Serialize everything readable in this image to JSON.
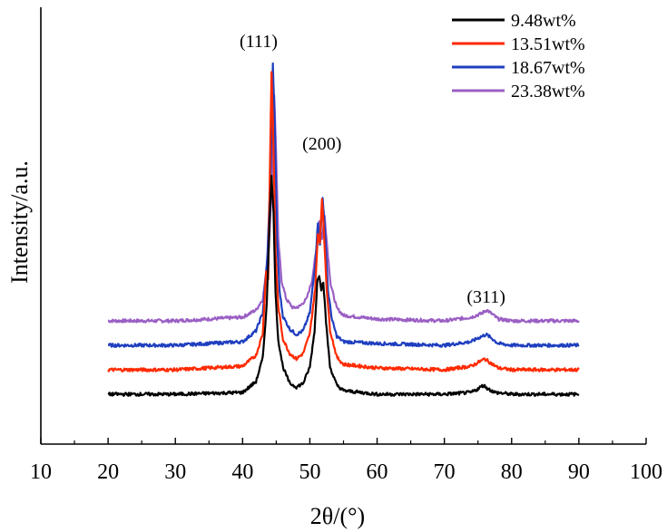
{
  "chart_data": {
    "type": "line",
    "title": "",
    "xlabel": "2θ/(°)",
    "ylabel": "Intensity/a.u.",
    "xlim": [
      10,
      100
    ],
    "x_ticks": [
      "10",
      "20",
      "30",
      "40",
      "50",
      "60",
      "70",
      "80",
      "90",
      "100"
    ],
    "y_ticks_shown": false,
    "grid": false,
    "legend_position": "top-right",
    "peak_labels": [
      {
        "text": "(111)",
        "x": 44.4
      },
      {
        "text": "(200)",
        "x": 51.8
      },
      {
        "text": "(311)",
        "x": 76.2
      }
    ],
    "series": [
      {
        "name": "9.48wt%",
        "color": "#000000",
        "baseline": 0.0,
        "points": [
          [
            20,
            0
          ],
          [
            30,
            0
          ],
          [
            40,
            0.01
          ],
          [
            42,
            0.07
          ],
          [
            43,
            0.2
          ],
          [
            43.6,
            0.5
          ],
          [
            44.1,
            1.05
          ],
          [
            44.3,
            1.2
          ],
          [
            44.6,
            1.0
          ],
          [
            44.9,
            0.55
          ],
          [
            45.3,
            0.3
          ],
          [
            46,
            0.15
          ],
          [
            47,
            0.06
          ],
          [
            48,
            0.04
          ],
          [
            49,
            0.06
          ],
          [
            50,
            0.15
          ],
          [
            50.7,
            0.35
          ],
          [
            51.1,
            0.62
          ],
          [
            51.4,
            0.66
          ],
          [
            51.7,
            0.58
          ],
          [
            52.0,
            0.62
          ],
          [
            52.4,
            0.4
          ],
          [
            53,
            0.15
          ],
          [
            54,
            0.05
          ],
          [
            55,
            0.02
          ],
          [
            60,
            0
          ],
          [
            70,
            0
          ],
          [
            74,
            0.01
          ],
          [
            75,
            0.03
          ],
          [
            75.8,
            0.05
          ],
          [
            76.5,
            0.03
          ],
          [
            77.5,
            0.01
          ],
          [
            80,
            0
          ],
          [
            90,
            0
          ]
        ]
      },
      {
        "name": "13.51wt%",
        "color": "#ff2a00",
        "baseline": 0.135,
        "points": [
          [
            20,
            0
          ],
          [
            30,
            0
          ],
          [
            40,
            0.02
          ],
          [
            42,
            0.08
          ],
          [
            43,
            0.2
          ],
          [
            43.5,
            0.55
          ],
          [
            43.8,
            0.5
          ],
          [
            44.1,
            1.2
          ],
          [
            44.3,
            1.65
          ],
          [
            44.6,
            1.2
          ],
          [
            44.9,
            0.65
          ],
          [
            45.3,
            0.35
          ],
          [
            46,
            0.17
          ],
          [
            47,
            0.09
          ],
          [
            48,
            0.06
          ],
          [
            49,
            0.09
          ],
          [
            50,
            0.2
          ],
          [
            50.8,
            0.45
          ],
          [
            51.2,
            0.75
          ],
          [
            51.5,
            0.7
          ],
          [
            51.8,
            0.95
          ],
          [
            52.1,
            0.75
          ],
          [
            52.5,
            0.45
          ],
          [
            53,
            0.22
          ],
          [
            54,
            0.07
          ],
          [
            55,
            0.03
          ],
          [
            60,
            0.01
          ],
          [
            70,
            0
          ],
          [
            74,
            0.02
          ],
          [
            75,
            0.04
          ],
          [
            76,
            0.06
          ],
          [
            76.8,
            0.04
          ],
          [
            78,
            0.01
          ],
          [
            80,
            0
          ],
          [
            90,
            0
          ]
        ]
      },
      {
        "name": "18.67wt%",
        "color": "#1f3fbf",
        "baseline": 0.27,
        "points": [
          [
            20,
            0
          ],
          [
            30,
            0
          ],
          [
            40,
            0.02
          ],
          [
            42,
            0.08
          ],
          [
            43,
            0.18
          ],
          [
            43.7,
            0.5
          ],
          [
            44.2,
            1.0
          ],
          [
            44.5,
            1.55
          ],
          [
            44.8,
            1.2
          ],
          [
            45.1,
            0.6
          ],
          [
            45.5,
            0.3
          ],
          [
            46,
            0.16
          ],
          [
            47,
            0.09
          ],
          [
            48,
            0.06
          ],
          [
            49,
            0.08
          ],
          [
            50,
            0.18
          ],
          [
            50.8,
            0.45
          ],
          [
            51.2,
            0.68
          ],
          [
            51.5,
            0.55
          ],
          [
            51.9,
            0.82
          ],
          [
            52.3,
            0.6
          ],
          [
            52.7,
            0.3
          ],
          [
            53.3,
            0.14
          ],
          [
            54,
            0.05
          ],
          [
            55,
            0.02
          ],
          [
            60,
            0.01
          ],
          [
            70,
            0
          ],
          [
            74,
            0.02
          ],
          [
            75,
            0.04
          ],
          [
            76.2,
            0.06
          ],
          [
            77,
            0.04
          ],
          [
            78,
            0.01
          ],
          [
            80,
            0
          ],
          [
            90,
            0
          ]
        ]
      },
      {
        "name": "23.38wt%",
        "color": "#9a5fc4",
        "baseline": 0.405,
        "points": [
          [
            20,
            0
          ],
          [
            30,
            0
          ],
          [
            40,
            0.02
          ],
          [
            42,
            0.06
          ],
          [
            43,
            0.12
          ],
          [
            43.8,
            0.35
          ],
          [
            44.3,
            0.7
          ],
          [
            44.7,
            1.25
          ],
          [
            45.0,
            0.9
          ],
          [
            45.3,
            0.45
          ],
          [
            45.8,
            0.22
          ],
          [
            46.5,
            0.12
          ],
          [
            47.5,
            0.07
          ],
          [
            48.5,
            0.08
          ],
          [
            49.5,
            0.12
          ],
          [
            50.3,
            0.22
          ],
          [
            51,
            0.4
          ],
          [
            51.4,
            0.55
          ],
          [
            51.8,
            0.45
          ],
          [
            52.2,
            0.58
          ],
          [
            52.6,
            0.4
          ],
          [
            53.1,
            0.2
          ],
          [
            54,
            0.07
          ],
          [
            55,
            0.03
          ],
          [
            60,
            0.01
          ],
          [
            70,
            0
          ],
          [
            74,
            0.02
          ],
          [
            75.5,
            0.04
          ],
          [
            76.3,
            0.06
          ],
          [
            77,
            0.04
          ],
          [
            78,
            0.01
          ],
          [
            80,
            0
          ],
          [
            90,
            0
          ]
        ]
      }
    ]
  }
}
